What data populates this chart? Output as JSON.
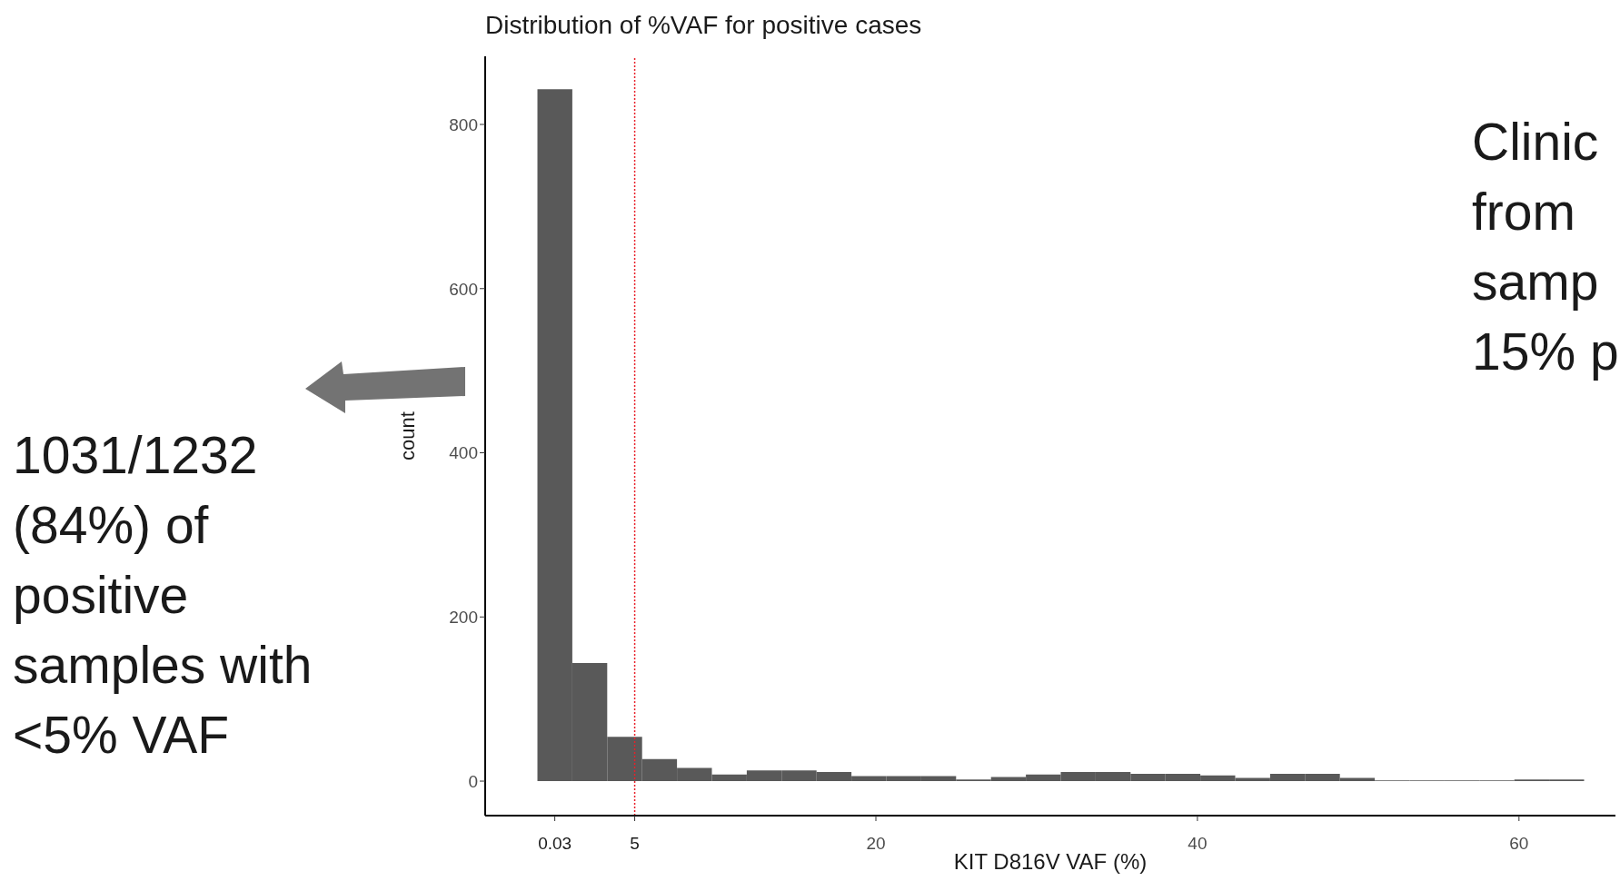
{
  "chart_data": {
    "type": "histogram",
    "title": "Distribution of %VAF for positive cases",
    "xlabel": "KIT D816V VAF (%)",
    "ylabel": "count",
    "bins": [
      -1.05,
      1.12,
      3.29,
      5.46,
      7.63,
      9.8,
      11.97,
      14.14,
      16.31,
      18.48,
      20.65,
      22.82,
      24.99,
      27.16,
      29.33,
      31.5,
      33.67,
      35.84,
      38.01,
      40.18,
      42.35,
      44.52,
      46.69,
      48.86,
      51.03,
      53.2,
      55.37,
      57.54,
      59.71,
      61.88,
      64.05
    ],
    "values": [
      843,
      144,
      54,
      27,
      16,
      8,
      13,
      13,
      11,
      6,
      6,
      6,
      2,
      5,
      8,
      11,
      11,
      9,
      9,
      7,
      4,
      9,
      9,
      4,
      1,
      1,
      1,
      1,
      2,
      2
    ],
    "color": "#595959",
    "xlim": [
      -4.3,
      66
    ],
    "xticks": [
      {
        "value": 0.03,
        "label": "0.03"
      },
      {
        "value": 5,
        "label": "5"
      },
      20,
      40,
      60
    ],
    "ylim": [
      -42,
      883
    ],
    "yticks": [
      0,
      200,
      400,
      600,
      800
    ],
    "grid": false,
    "ref_lines": [
      {
        "axis": "x",
        "value": 5,
        "label": null,
        "color": "#e8202a",
        "line_style": "dotted"
      }
    ],
    "annotations": [
      "1031/1232 (84%) of positive samples with <5% VAF",
      "Clinic from samp 15% p"
    ]
  }
}
